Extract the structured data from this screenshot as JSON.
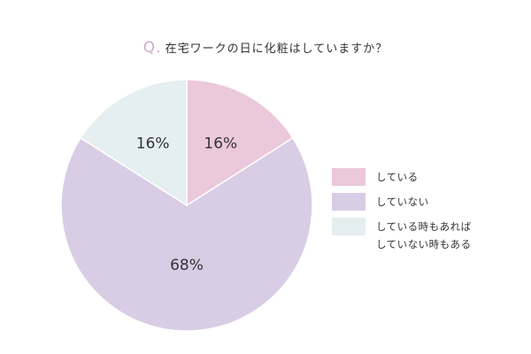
{
  "title": {
    "prefix": "Q.",
    "text": "在宅ワークの日に化粧はしていますか？"
  },
  "colors": {
    "prefix": "#d4a8c8",
    "text": "#333333"
  },
  "chart_data": {
    "type": "pie",
    "title": "在宅ワークの日に化粧はしていますか？",
    "slices": [
      {
        "label": "している",
        "value": 16,
        "display": "16%",
        "color": "#ebc8db"
      },
      {
        "label": "していない",
        "value": 68,
        "display": "68%",
        "color": "#d8cde4"
      },
      {
        "label": "している時もあれば\nしていない時もある",
        "value": 16,
        "display": "16%",
        "color": "#e5eef0"
      }
    ],
    "legend_position": "right"
  }
}
